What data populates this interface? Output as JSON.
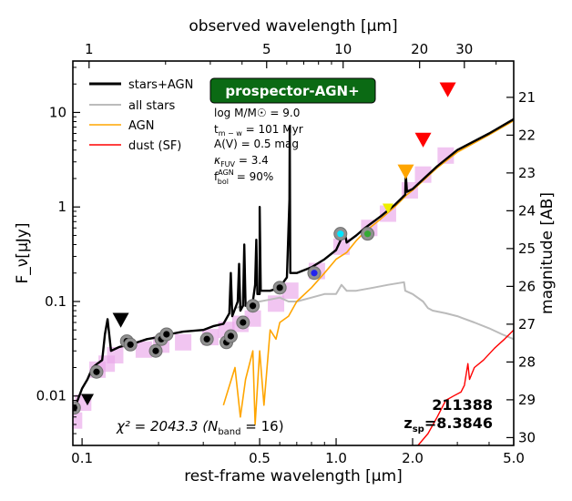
{
  "chart_data": {
    "type": "line",
    "title_badge": "prospector-AGN+",
    "xlabel": "rest-frame wavelength [$\\mu m$]",
    "xlabel_text": "rest-frame wavelength [μm]",
    "ylabel": "F_ν[μJy]",
    "ylabel_right": "magnitude [AB]",
    "xlabel_top": "observed wavelength [μm]",
    "xlim": [
      0.092,
      5.0
    ],
    "ylim": [
      0.003,
      35
    ],
    "x_ticks": [
      0.1,
      0.5,
      1.0,
      2.0,
      5.0
    ],
    "x_tick_labels": [
      "0.1",
      "0.5",
      "1.0",
      "2.0",
      "5.0"
    ],
    "y_ticks": [
      0.01,
      0.1,
      1,
      10
    ],
    "y_tick_labels": [
      "0.01",
      "0.1",
      "1",
      "10"
    ],
    "top_ticks": [
      1,
      5,
      10,
      20,
      30
    ],
    "top_tick_labels": [
      "1",
      "5",
      "10",
      "20",
      "30"
    ],
    "right_ticks": [
      20,
      21,
      22,
      23,
      24,
      25,
      26,
      27,
      28,
      29,
      30
    ],
    "right_tick_labels": [
      "20",
      "21",
      "22",
      "23",
      "24",
      "25",
      "26",
      "27",
      "28",
      "29",
      "30"
    ],
    "redshift": 8.3846,
    "legend": [
      {
        "label": "stars+AGN",
        "color": "#000000"
      },
      {
        "label": "all stars",
        "color": "#bbbbbb"
      },
      {
        "label": "AGN",
        "color": "#ffa500"
      },
      {
        "label": "dust (SF)",
        "color": "#ff0000"
      }
    ],
    "params": {
      "mass": "log M/M☉ = 9.0",
      "tmw": "t",
      "tmw_sub": "m − w",
      "tmw_val": " = 101 Myr",
      "av": "A(V) = 0.5 mag",
      "kappa": "κ",
      "kappa_sub": "FUV",
      "kappa_val": " = 3.4",
      "fbol": "f",
      "fbol_sup": "AGN",
      "fbol_sub": "bol",
      "fbol_val": " = 90%"
    },
    "object_id": "211388",
    "zsp_label": "z",
    "zsp_sub": "sp",
    "zsp_val": "=8.3846",
    "chi_text": "χ² = 2043.3 (N",
    "chi_sub": "band",
    "chi_tail": " = 16)",
    "series": [
      {
        "name": "stars+AGN",
        "color": "#000000",
        "width": 2.4,
        "points": [
          [
            0.092,
            0.0065
          ],
          [
            0.096,
            0.009
          ],
          [
            0.1,
            0.012
          ],
          [
            0.105,
            0.015
          ],
          [
            0.11,
            0.02
          ],
          [
            0.115,
            0.022
          ],
          [
            0.12,
            0.024
          ],
          [
            0.123,
            0.045
          ],
          [
            0.126,
            0.065
          ],
          [
            0.13,
            0.03
          ],
          [
            0.14,
            0.033
          ],
          [
            0.16,
            0.036
          ],
          [
            0.18,
            0.04
          ],
          [
            0.2,
            0.042
          ],
          [
            0.22,
            0.045
          ],
          [
            0.25,
            0.048
          ],
          [
            0.3,
            0.05
          ],
          [
            0.33,
            0.055
          ],
          [
            0.36,
            0.058
          ],
          [
            0.38,
            0.075
          ],
          [
            0.385,
            0.2
          ],
          [
            0.39,
            0.07
          ],
          [
            0.41,
            0.1
          ],
          [
            0.415,
            0.25
          ],
          [
            0.42,
            0.08
          ],
          [
            0.43,
            0.09
          ],
          [
            0.435,
            0.4
          ],
          [
            0.44,
            0.09
          ],
          [
            0.47,
            0.1
          ],
          [
            0.48,
            0.15
          ],
          [
            0.485,
            0.45
          ],
          [
            0.49,
            0.12
          ],
          [
            0.5,
            0.12
          ],
          [
            0.5,
            1.0
          ],
          [
            0.505,
            0.13
          ],
          [
            0.55,
            0.13
          ],
          [
            0.6,
            0.14
          ],
          [
            0.62,
            0.16
          ],
          [
            0.64,
            0.18
          ],
          [
            0.655,
            1.2
          ],
          [
            0.657,
            7.0
          ],
          [
            0.66,
            0.2
          ],
          [
            0.7,
            0.2
          ],
          [
            0.8,
            0.23
          ],
          [
            0.9,
            0.28
          ],
          [
            1.0,
            0.35
          ],
          [
            1.08,
            0.55
          ],
          [
            1.1,
            0.42
          ],
          [
            1.2,
            0.5
          ],
          [
            1.3,
            0.6
          ],
          [
            1.5,
            0.8
          ],
          [
            1.7,
            1.05
          ],
          [
            1.87,
            1.35
          ],
          [
            1.88,
            2.2
          ],
          [
            1.9,
            1.45
          ],
          [
            2.0,
            1.55
          ],
          [
            2.5,
            2.7
          ],
          [
            3.0,
            4.0
          ],
          [
            4.0,
            6.0
          ],
          [
            5.0,
            8.5
          ]
        ]
      },
      {
        "name": "all stars",
        "color": "#bbbbbb",
        "width": 2.0,
        "points": [
          [
            0.4,
            0.085
          ],
          [
            0.5,
            0.1
          ],
          [
            0.55,
            0.105
          ],
          [
            0.6,
            0.11
          ],
          [
            0.65,
            0.1
          ],
          [
            0.7,
            0.1
          ],
          [
            0.8,
            0.11
          ],
          [
            0.9,
            0.12
          ],
          [
            1.0,
            0.12
          ],
          [
            1.05,
            0.15
          ],
          [
            1.1,
            0.13
          ],
          [
            1.2,
            0.13
          ],
          [
            1.4,
            0.14
          ],
          [
            1.6,
            0.15
          ],
          [
            1.85,
            0.16
          ],
          [
            1.87,
            0.13
          ],
          [
            2.0,
            0.12
          ],
          [
            2.2,
            0.1
          ],
          [
            2.3,
            0.085
          ],
          [
            2.4,
            0.08
          ],
          [
            2.7,
            0.075
          ],
          [
            3.0,
            0.07
          ],
          [
            3.5,
            0.06
          ],
          [
            4.0,
            0.052
          ],
          [
            4.5,
            0.045
          ],
          [
            5.0,
            0.04
          ]
        ]
      },
      {
        "name": "AGN",
        "color": "#ffa500",
        "width": 1.6,
        "points": [
          [
            0.36,
            0.008
          ],
          [
            0.4,
            0.02
          ],
          [
            0.42,
            0.006
          ],
          [
            0.44,
            0.015
          ],
          [
            0.47,
            0.03
          ],
          [
            0.48,
            0.005
          ],
          [
            0.5,
            0.03
          ],
          [
            0.52,
            0.008
          ],
          [
            0.55,
            0.05
          ],
          [
            0.58,
            0.04
          ],
          [
            0.6,
            0.06
          ],
          [
            0.65,
            0.07
          ],
          [
            0.7,
            0.1
          ],
          [
            0.8,
            0.14
          ],
          [
            0.9,
            0.2
          ],
          [
            1.0,
            0.28
          ],
          [
            1.1,
            0.33
          ],
          [
            1.2,
            0.44
          ],
          [
            1.3,
            0.55
          ],
          [
            1.5,
            0.75
          ],
          [
            1.7,
            1.0
          ],
          [
            1.9,
            1.35
          ],
          [
            2.0,
            1.5
          ],
          [
            2.5,
            2.6
          ],
          [
            3.0,
            3.8
          ],
          [
            4.0,
            5.8
          ],
          [
            5.0,
            8.2
          ]
        ]
      },
      {
        "name": "dust (SF)",
        "color": "#ff0000",
        "width": 1.4,
        "points": [
          [
            2.1,
            0.003
          ],
          [
            2.3,
            0.004
          ],
          [
            2.5,
            0.006
          ],
          [
            2.7,
            0.009
          ],
          [
            2.9,
            0.01
          ],
          [
            3.1,
            0.011
          ],
          [
            3.2,
            0.013
          ],
          [
            3.3,
            0.022
          ],
          [
            3.35,
            0.015
          ],
          [
            3.5,
            0.02
          ],
          [
            3.8,
            0.024
          ],
          [
            4.2,
            0.032
          ],
          [
            4.6,
            0.04
          ],
          [
            5.0,
            0.05
          ]
        ]
      }
    ],
    "model_photometry": [
      {
        "x": 0.093,
        "y": 0.0055
      },
      {
        "x": 0.101,
        "y": 0.0085
      },
      {
        "x": 0.115,
        "y": 0.019
      },
      {
        "x": 0.125,
        "y": 0.022
      },
      {
        "x": 0.135,
        "y": 0.027
      },
      {
        "x": 0.175,
        "y": 0.031
      },
      {
        "x": 0.205,
        "y": 0.035
      },
      {
        "x": 0.25,
        "y": 0.037
      },
      {
        "x": 0.32,
        "y": 0.042
      },
      {
        "x": 0.37,
        "y": 0.05
      },
      {
        "x": 0.42,
        "y": 0.058
      },
      {
        "x": 0.47,
        "y": 0.066
      },
      {
        "x": 0.58,
        "y": 0.095
      },
      {
        "x": 0.66,
        "y": 0.13
      },
      {
        "x": 0.84,
        "y": 0.21
      },
      {
        "x": 1.05,
        "y": 0.38
      },
      {
        "x": 1.35,
        "y": 0.6
      },
      {
        "x": 1.6,
        "y": 0.85
      },
      {
        "x": 1.95,
        "y": 1.5
      },
      {
        "x": 2.2,
        "y": 2.2
      },
      {
        "x": 2.7,
        "y": 3.5
      }
    ],
    "observed": [
      {
        "x": 0.093,
        "y": 0.0075,
        "fill": "#000000"
      },
      {
        "x": 0.114,
        "y": 0.018,
        "fill": "#000000"
      },
      {
        "x": 0.15,
        "y": 0.038,
        "fill": "#000000"
      },
      {
        "x": 0.155,
        "y": 0.035,
        "fill": "#000000"
      },
      {
        "x": 0.195,
        "y": 0.03,
        "fill": "#000000"
      },
      {
        "x": 0.205,
        "y": 0.04,
        "fill": "#000000"
      },
      {
        "x": 0.215,
        "y": 0.045,
        "fill": "#000000"
      },
      {
        "x": 0.31,
        "y": 0.04,
        "fill": "#000000"
      },
      {
        "x": 0.37,
        "y": 0.037,
        "fill": "#000000"
      },
      {
        "x": 0.385,
        "y": 0.043,
        "fill": "#000000"
      },
      {
        "x": 0.43,
        "y": 0.06,
        "fill": "#000000"
      },
      {
        "x": 0.47,
        "y": 0.09,
        "fill": "#000000"
      },
      {
        "x": 0.6,
        "y": 0.14,
        "fill": "#000000"
      },
      {
        "x": 0.82,
        "y": 0.2,
        "fill": "#2222ee"
      },
      {
        "x": 1.04,
        "y": 0.52,
        "fill": "#00e5ff"
      },
      {
        "x": 1.33,
        "y": 0.52,
        "fill": "#33aa33"
      }
    ],
    "upper_limits": [
      {
        "x": 0.105,
        "y": 0.009,
        "color": "#000000",
        "size": 7
      },
      {
        "x": 0.142,
        "y": 0.062,
        "color": "#000000",
        "size": 9
      },
      {
        "x": 1.6,
        "y": 0.95,
        "color": "#eeee00",
        "size": 6
      },
      {
        "x": 1.88,
        "y": 2.3,
        "color": "#ffa500",
        "size": 9
      },
      {
        "x": 2.2,
        "y": 5.0,
        "color": "#ff0000",
        "size": 9
      },
      {
        "x": 2.75,
        "y": 17.0,
        "color": "#ff0000",
        "size": 9
      }
    ]
  }
}
